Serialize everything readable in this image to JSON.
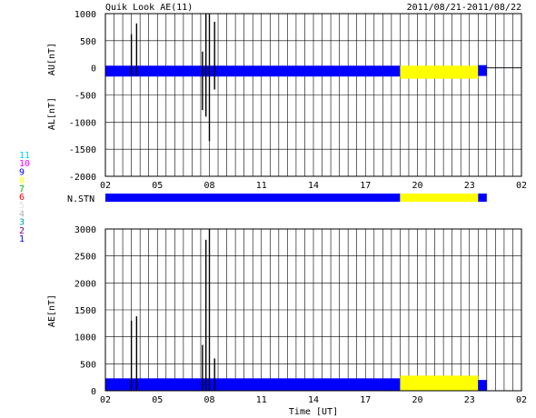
{
  "header": {
    "title": "Quik Look AE(11)",
    "date_range": "2011/08/21-2011/08/22"
  },
  "colors": {
    "blue": "#0000ff",
    "yellow": "#ffff00",
    "black": "#000000",
    "grid": "#000000"
  },
  "station_legend": {
    "labels": [
      "11",
      "10",
      "9",
      "8",
      "7",
      "6",
      "5",
      "4",
      "3",
      "2",
      "1"
    ],
    "colors": [
      "#00d0ff",
      "#ff00ff",
      "#0000ff",
      "#ffff00",
      "#00c000",
      "#ff0000",
      "#e0e0e0",
      "#b0b0b0",
      "#00a0a0",
      "#800080",
      "#0000ff"
    ]
  },
  "x_axis": {
    "label": "Time [UT]",
    "ticks": [
      "02",
      "05",
      "08",
      "11",
      "14",
      "17",
      "20",
      "23",
      "02"
    ],
    "tick_hours": [
      2,
      5,
      8,
      11,
      14,
      17,
      20,
      23,
      26
    ],
    "range": [
      2,
      26
    ]
  },
  "chart_data": [
    {
      "type": "area",
      "panel": "AU/AL",
      "ylabel_top": "AU[nT]",
      "ylabel_bottom": "AL[nT]",
      "ylim": [
        -2000,
        1000
      ],
      "yticks": [
        1000,
        500,
        0,
        -500,
        -1000,
        -1500,
        -2000
      ],
      "grid": true,
      "segments": [
        {
          "start": 2,
          "end": 19,
          "color": "blue",
          "upper": 40,
          "lower": -160
        },
        {
          "start": 19,
          "end": 23.5,
          "color": "yellow",
          "upper": 40,
          "lower": -200
        },
        {
          "start": 23.5,
          "end": 24,
          "color": "blue",
          "upper": 50,
          "lower": -150
        }
      ],
      "spikes": [
        {
          "t": 3.5,
          "min": -150,
          "max": 620
        },
        {
          "t": 3.8,
          "min": -150,
          "max": 820
        },
        {
          "t": 7.6,
          "min": -780,
          "max": 300
        },
        {
          "t": 7.8,
          "min": -900,
          "max": 1000
        },
        {
          "t": 8.0,
          "min": -1350,
          "max": 1000
        },
        {
          "t": 8.3,
          "min": -400,
          "max": 850
        }
      ],
      "data_end": 24
    },
    {
      "type": "bar",
      "panel": "N.STN",
      "label": "N.STN",
      "segments": [
        {
          "start": 2,
          "end": 19,
          "color": "blue"
        },
        {
          "start": 19,
          "end": 23.5,
          "color": "yellow"
        },
        {
          "start": 23.5,
          "end": 24,
          "color": "blue"
        }
      ]
    },
    {
      "type": "area",
      "panel": "AE",
      "ylabel": "AE[nT]",
      "ylim": [
        0,
        3000
      ],
      "yticks": [
        3000,
        2500,
        2000,
        1500,
        1000,
        500,
        0
      ],
      "grid": true,
      "segments": [
        {
          "start": 2,
          "end": 19,
          "color": "blue",
          "upper": 230,
          "lower": 0
        },
        {
          "start": 19,
          "end": 23.5,
          "color": "yellow",
          "upper": 280,
          "lower": 0
        },
        {
          "start": 23.5,
          "end": 24,
          "color": "blue",
          "upper": 200,
          "lower": 0
        }
      ],
      "spikes": [
        {
          "t": 3.5,
          "min": 0,
          "max": 1300
        },
        {
          "t": 3.8,
          "min": 0,
          "max": 1380
        },
        {
          "t": 7.6,
          "min": 0,
          "max": 850
        },
        {
          "t": 7.8,
          "min": 0,
          "max": 2800
        },
        {
          "t": 8.0,
          "min": 0,
          "max": 3000
        },
        {
          "t": 8.3,
          "min": 0,
          "max": 600
        }
      ],
      "data_end": 24
    }
  ]
}
